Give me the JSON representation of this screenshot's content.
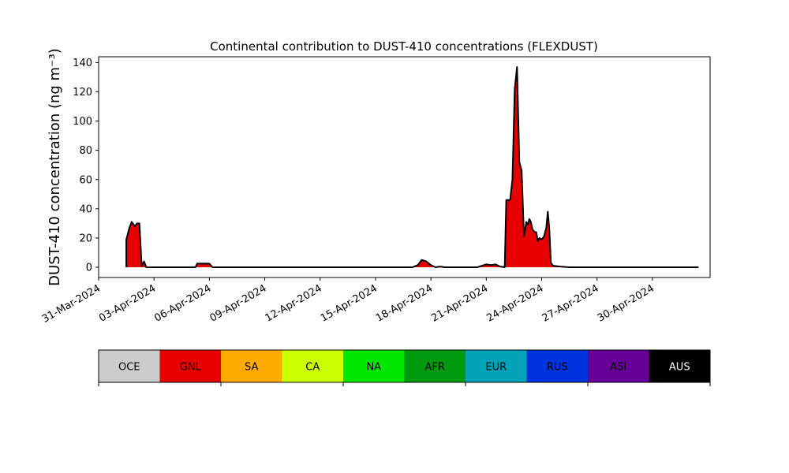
{
  "chart_data": {
    "type": "area",
    "title": "Continental contribution to DUST-410 concentrations (FLEXDUST)",
    "ylabel": "DUST-410 concentration (ng m⁻³)",
    "xlabel": "",
    "x_range": [
      "2024-03-31T00:00",
      "2024-05-03T03:00"
    ],
    "ylim": [
      -7,
      144
    ],
    "yticks": [
      0,
      20,
      40,
      60,
      80,
      100,
      120,
      140
    ],
    "xticks": [
      "31-Mar-2024",
      "03-Apr-2024",
      "06-Apr-2024",
      "09-Apr-2024",
      "12-Apr-2024",
      "15-Apr-2024",
      "18-Apr-2024",
      "21-Apr-2024",
      "24-Apr-2024",
      "27-Apr-2024",
      "30-Apr-2024"
    ],
    "xtick_dates": [
      "2024-03-31",
      "2024-04-03",
      "2024-04-06",
      "2024-04-09",
      "2024-04-12",
      "2024-04-15",
      "2024-04-18",
      "2024-04-21",
      "2024-04-24",
      "2024-04-27",
      "2024-04-30"
    ],
    "grid": false,
    "total_line_color": "#000000",
    "series": [
      {
        "name": "GNL",
        "color": "#e60000",
        "points": [
          [
            "2024-04-01T12:00",
            0
          ],
          [
            "2024-04-01T12:00",
            19
          ],
          [
            "2024-04-01T16:00",
            27
          ],
          [
            "2024-04-01T19:00",
            31
          ],
          [
            "2024-04-01T23:00",
            28
          ],
          [
            "2024-04-02T02:00",
            30
          ],
          [
            "2024-04-02T05:00",
            30
          ],
          [
            "2024-04-02T08:00",
            1
          ],
          [
            "2024-04-02T11:00",
            4
          ],
          [
            "2024-04-02T14:00",
            0
          ],
          [
            "2024-04-05T06:00",
            0
          ],
          [
            "2024-04-05T08:00",
            2.5
          ],
          [
            "2024-04-06T00:00",
            2.5
          ],
          [
            "2024-04-06T04:00",
            0
          ],
          [
            "2024-04-17T00:00",
            0
          ],
          [
            "2024-04-17T07:00",
            1.5
          ],
          [
            "2024-04-17T12:00",
            5
          ],
          [
            "2024-04-17T18:00",
            4
          ],
          [
            "2024-04-18T00:00",
            1.5
          ],
          [
            "2024-04-18T06:00",
            0
          ],
          [
            "2024-04-18T12:00",
            0.5
          ],
          [
            "2024-04-18T18:00",
            0
          ],
          [
            "2024-04-20T00:00",
            0
          ],
          [
            "2024-04-20T12:00",
            0
          ],
          [
            "2024-04-21T00:00",
            2
          ],
          [
            "2024-04-21T06:00",
            1.5
          ],
          [
            "2024-04-21T12:00",
            2
          ],
          [
            "2024-04-21T18:00",
            0.5
          ],
          [
            "2024-04-22T00:00",
            0
          ],
          [
            "2024-04-22T02:00",
            46
          ],
          [
            "2024-04-22T07:00",
            46
          ],
          [
            "2024-04-22T10:00",
            60
          ],
          [
            "2024-04-22T13:00",
            122
          ],
          [
            "2024-04-22T16:00",
            137
          ],
          [
            "2024-04-22T19:00",
            72
          ],
          [
            "2024-04-22T22:00",
            66
          ],
          [
            "2024-04-23T01:00",
            21
          ],
          [
            "2024-04-23T04:00",
            31
          ],
          [
            "2024-04-23T06:00",
            29
          ],
          [
            "2024-04-23T08:00",
            33
          ],
          [
            "2024-04-23T10:00",
            31
          ],
          [
            "2024-04-23T12:00",
            26
          ],
          [
            "2024-04-23T15:00",
            24
          ],
          [
            "2024-04-23T17:00",
            24
          ],
          [
            "2024-04-23T19:00",
            18
          ],
          [
            "2024-04-23T21:00",
            20
          ],
          [
            "2024-04-24T00:00",
            19
          ],
          [
            "2024-04-24T03:00",
            21
          ],
          [
            "2024-04-24T06:00",
            27
          ],
          [
            "2024-04-24T08:00",
            38
          ],
          [
            "2024-04-24T10:00",
            26
          ],
          [
            "2024-04-24T12:00",
            3
          ],
          [
            "2024-04-24T15:00",
            1
          ],
          [
            "2024-04-25T00:00",
            0.5
          ],
          [
            "2024-04-25T12:00",
            0
          ],
          [
            "2024-05-02T12:00",
            0
          ]
        ]
      }
    ],
    "legend": {
      "placement": "below chart",
      "entries": [
        {
          "name": "OCE",
          "color": "#cccccc",
          "text_color": "#000000"
        },
        {
          "name": "GNL",
          "color": "#e60000",
          "text_color": "#000000"
        },
        {
          "name": "SA",
          "color": "#ffaa00",
          "text_color": "#000000"
        },
        {
          "name": "CA",
          "color": "#ccff00",
          "text_color": "#000000"
        },
        {
          "name": "NA",
          "color": "#00e600",
          "text_color": "#000000"
        },
        {
          "name": "AFR",
          "color": "#009a0e",
          "text_color": "#000000"
        },
        {
          "name": "EUR",
          "color": "#00a3b8",
          "text_color": "#000000"
        },
        {
          "name": "RUS",
          "color": "#0033e0",
          "text_color": "#000000"
        },
        {
          "name": "ASI",
          "color": "#660099",
          "text_color": "#000000"
        },
        {
          "name": "AUS",
          "color": "#000000",
          "text_color": "#ffffff"
        }
      ]
    }
  }
}
